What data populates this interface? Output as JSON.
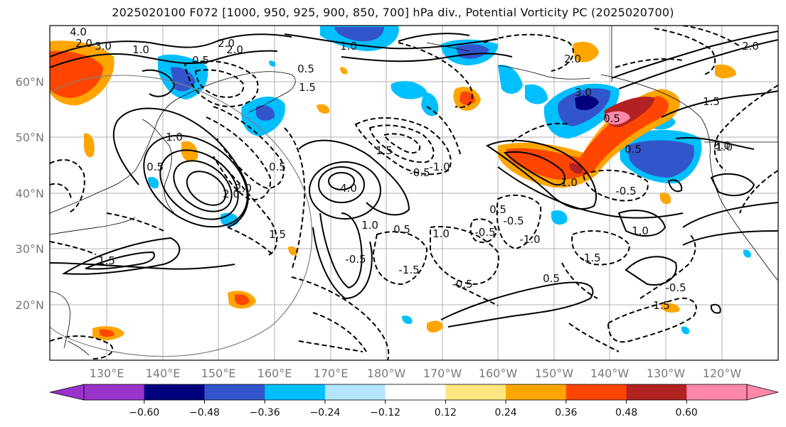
{
  "title": "2025020100 F072 [1000, 950, 925, 900, 850, 700] hPa div., Potential Vorticity PC (2025020700)",
  "map": {
    "lat_labels": [
      "60°N",
      "50°N",
      "40°N",
      "30°N",
      "20°N"
    ],
    "lon_labels": [
      "130°E",
      "140°E",
      "150°E",
      "160°E",
      "170°E",
      "180°W",
      "170°W",
      "160°W",
      "150°W",
      "140°W",
      "130°W",
      "120°W"
    ],
    "contour_labels": [
      "4.0",
      "3.0",
      "2.0",
      "1.0",
      "0.5",
      "2.0",
      "0.5",
      "1.5",
      "2.0",
      "1.0",
      "0.5",
      "1.0",
      "2.0",
      "0.5",
      "1.5",
      "2.0",
      "1.5",
      "-0.5",
      "-1.0",
      "0.5",
      "1.0",
      "-0.5",
      "-1.5",
      "-0.5",
      "-1.0",
      "-0.5",
      "-0.5",
      "-1.5",
      "-0.5",
      "1.5",
      "1.0",
      "0.5",
      "1.0",
      "2.0",
      "3.0",
      "1.5",
      "0.5",
      "1.0",
      "0.5",
      "-0.5",
      "2.0",
      "3.0",
      "4.0",
      "0.5",
      "1.0",
      "1.5"
    ]
  },
  "colorbar": {
    "ticks": [
      "−0.60",
      "−0.48",
      "−0.36",
      "−0.24",
      "−0.12",
      "0.12",
      "0.24",
      "0.36",
      "0.48",
      "0.60"
    ],
    "colors": [
      "#9933cc",
      "#00007f",
      "#3355cc",
      "#00bfff",
      "#b3e5ff",
      "#ffffff",
      "#ffe680",
      "#ffa500",
      "#ff4500",
      "#b22222",
      "#ff88aa",
      "#ff88aa"
    ]
  }
}
